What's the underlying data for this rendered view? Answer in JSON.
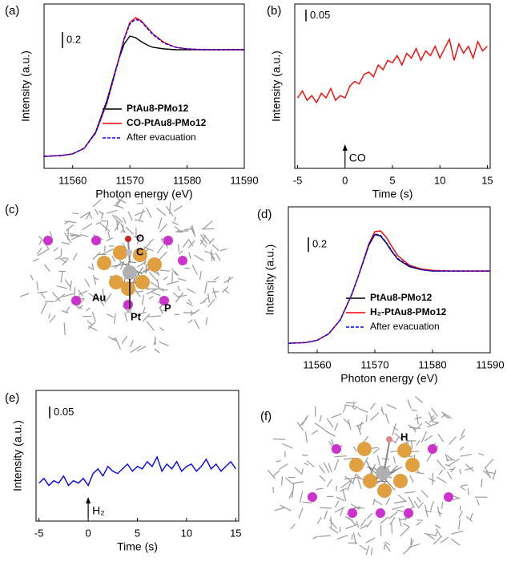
{
  "chart_data": [
    {
      "type": "line",
      "label": "(a)",
      "xlabel": "Photon energy (eV)",
      "ylabel": "Intensity (a.u.)",
      "x": [
        11555,
        11558,
        11560,
        11562,
        11564,
        11566,
        11567,
        11568,
        11569,
        11570,
        11571,
        11572,
        11573,
        11574,
        11576,
        11578,
        11580,
        11583,
        11586,
        11590
      ],
      "series": [
        {
          "name": "PtAu8-PMo12",
          "color": "#000000",
          "values": [
            0.15,
            0.16,
            0.18,
            0.25,
            0.45,
            0.85,
            1.1,
            1.35,
            1.55,
            1.65,
            1.63,
            1.58,
            1.54,
            1.51,
            1.49,
            1.48,
            1.48,
            1.48,
            1.48,
            1.48
          ]
        },
        {
          "name": "CO-PtAu8-PMo12",
          "color": "#ff0000",
          "values": [
            0.15,
            0.16,
            0.18,
            0.25,
            0.44,
            0.82,
            1.08,
            1.35,
            1.62,
            1.82,
            1.88,
            1.84,
            1.76,
            1.68,
            1.57,
            1.51,
            1.49,
            1.48,
            1.48,
            1.48
          ]
        },
        {
          "name": "After evacuation",
          "color": "#0000ff",
          "dashed": true,
          "values": [
            0.15,
            0.16,
            0.18,
            0.25,
            0.44,
            0.82,
            1.08,
            1.34,
            1.61,
            1.8,
            1.86,
            1.83,
            1.75,
            1.67,
            1.56,
            1.51,
            1.49,
            1.48,
            1.48,
            1.48
          ]
        }
      ],
      "xlim": [
        11555,
        11590
      ],
      "ylim": [
        0,
        2.05
      ],
      "xticks": [
        11560,
        11570,
        11580,
        11590
      ],
      "scale_bar": 0.2
    },
    {
      "type": "line",
      "label": "(b)",
      "xlabel": "Time (s)",
      "ylabel": "Intensity (a.u.)",
      "x": [
        -5,
        -4.5,
        -4,
        -3.5,
        -3,
        -2.5,
        -2,
        -1.5,
        -1,
        -0.5,
        0,
        0.5,
        1,
        1.5,
        2,
        2.5,
        3,
        3.5,
        4,
        4.5,
        5,
        5.5,
        6,
        6.5,
        7,
        7.5,
        8,
        8.5,
        9,
        9.5,
        10,
        10.5,
        11,
        11.5,
        12,
        12.5,
        13,
        13.5,
        14,
        14.5,
        15
      ],
      "values": [
        0.3,
        0.33,
        0.29,
        0.31,
        0.28,
        0.32,
        0.3,
        0.34,
        0.29,
        0.31,
        0.3,
        0.35,
        0.37,
        0.36,
        0.4,
        0.41,
        0.39,
        0.44,
        0.42,
        0.46,
        0.45,
        0.48,
        0.44,
        0.49,
        0.47,
        0.51,
        0.46,
        0.5,
        0.48,
        0.52,
        0.47,
        0.51,
        0.55,
        0.46,
        0.53,
        0.49,
        0.52,
        0.47,
        0.54,
        0.5,
        0.52
      ],
      "color": "#ff0000",
      "xlim": [
        -5.3,
        15.3
      ],
      "ylim": [
        0,
        0.7
      ],
      "xticks": [
        -5,
        0,
        5,
        10,
        15
      ],
      "scale_bar": 0.05,
      "annotations": [
        {
          "text": "CO",
          "x": 0
        }
      ]
    },
    {
      "type": "line",
      "label": "(d)",
      "xlabel": "Photon energy (eV)",
      "ylabel": "Intensity (a.u.)",
      "x": [
        11555,
        11558,
        11560,
        11562,
        11564,
        11566,
        11567,
        11568,
        11569,
        11570,
        11571,
        11572,
        11573,
        11574,
        11576,
        11578,
        11580,
        11583,
        11586,
        11590
      ],
      "series": [
        {
          "name": "PtAu8-PMo12",
          "color": "#000000",
          "values": [
            0.13,
            0.14,
            0.17,
            0.26,
            0.45,
            0.8,
            1.02,
            1.25,
            1.48,
            1.62,
            1.6,
            1.5,
            1.38,
            1.28,
            1.18,
            1.14,
            1.12,
            1.12,
            1.12,
            1.12
          ]
        },
        {
          "name": "H₂-PtAu8-PMo12",
          "color": "#ff0000",
          "values": [
            0.13,
            0.14,
            0.17,
            0.26,
            0.45,
            0.8,
            1.02,
            1.26,
            1.5,
            1.66,
            1.67,
            1.58,
            1.45,
            1.33,
            1.2,
            1.15,
            1.13,
            1.12,
            1.12,
            1.12
          ]
        },
        {
          "name": "After evacuation",
          "color": "#0000ff",
          "dashed": true,
          "values": [
            0.13,
            0.14,
            0.17,
            0.26,
            0.45,
            0.8,
            1.02,
            1.25,
            1.49,
            1.63,
            1.61,
            1.51,
            1.39,
            1.29,
            1.19,
            1.14,
            1.12,
            1.12,
            1.12,
            1.12
          ]
        }
      ],
      "xlim": [
        11555,
        11590
      ],
      "ylim": [
        0,
        2.0
      ],
      "xticks": [
        11560,
        11570,
        11580,
        11590
      ],
      "scale_bar": 0.2
    },
    {
      "type": "line",
      "label": "(e)",
      "xlabel": "Time (s)",
      "ylabel": "Intensity (a.u.)",
      "x": [
        -5,
        -4.5,
        -4,
        -3.5,
        -3,
        -2.5,
        -2,
        -1.5,
        -1,
        -0.5,
        0,
        0.5,
        1,
        1.5,
        2,
        2.5,
        3,
        3.5,
        4,
        4.5,
        5,
        5.5,
        6,
        6.5,
        7,
        7.5,
        8,
        8.5,
        9,
        9.5,
        10,
        10.5,
        11,
        11.5,
        12,
        12.5,
        13,
        13.5,
        14,
        14.5,
        15
      ],
      "values": [
        0.16,
        0.18,
        0.15,
        0.17,
        0.16,
        0.19,
        0.15,
        0.17,
        0.16,
        0.18,
        0.15,
        0.2,
        0.22,
        0.19,
        0.23,
        0.21,
        0.2,
        0.22,
        0.24,
        0.21,
        0.23,
        0.22,
        0.25,
        0.23,
        0.27,
        0.21,
        0.24,
        0.22,
        0.25,
        0.21,
        0.23,
        0.24,
        0.21,
        0.23,
        0.26,
        0.22,
        0.24,
        0.21,
        0.23,
        0.25,
        0.22
      ],
      "color": "#0000ff",
      "xlim": [
        -5.3,
        15.3
      ],
      "ylim": [
        0,
        0.55
      ],
      "xticks": [
        -5,
        0,
        5,
        10,
        15
      ],
      "scale_bar": 0.05,
      "annotations": [
        {
          "text": "H₂",
          "x": 0
        }
      ]
    }
  ],
  "structures": [
    {
      "label": "(c)",
      "atoms": [
        "O",
        "C",
        "Au",
        "Pt",
        "P"
      ]
    },
    {
      "label": "(f)",
      "atoms": [
        "H"
      ]
    }
  ]
}
